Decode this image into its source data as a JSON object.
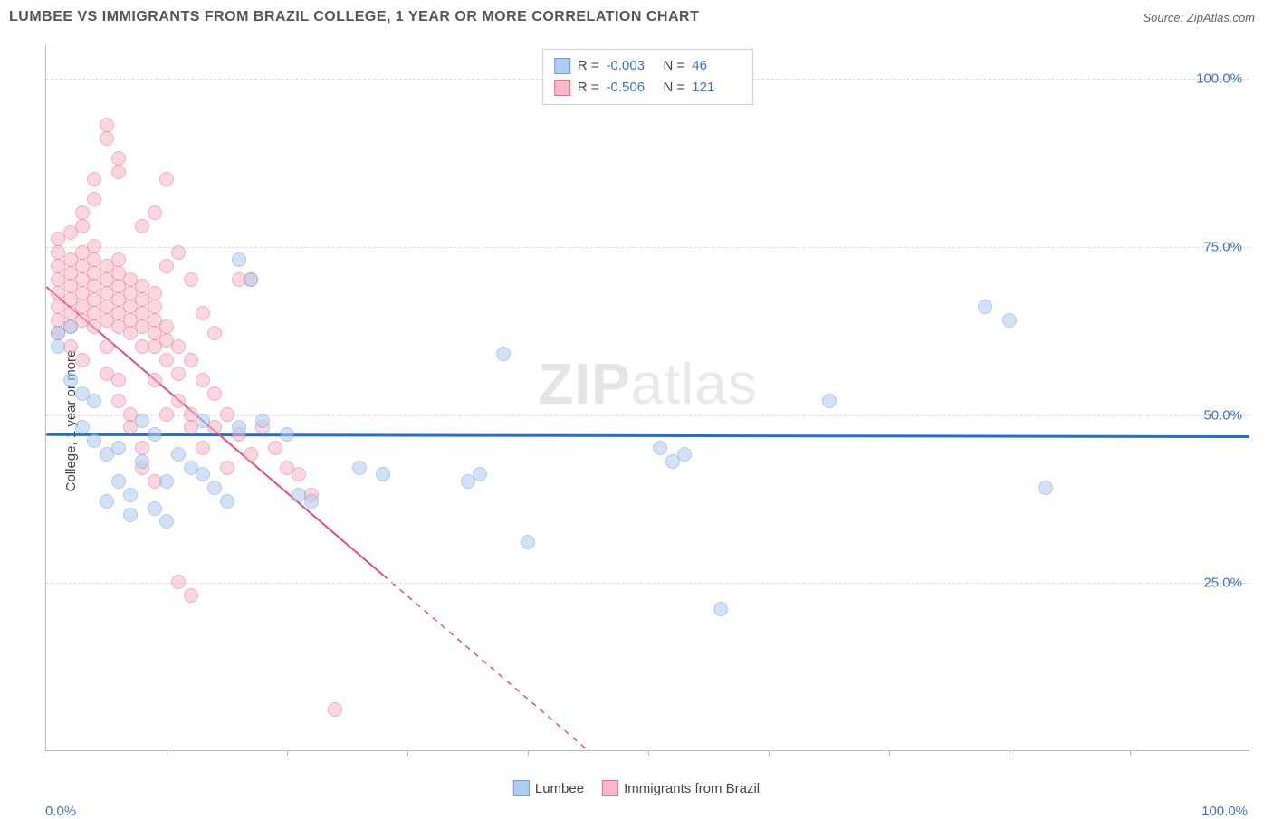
{
  "header": {
    "title": "LUMBEE VS IMMIGRANTS FROM BRAZIL COLLEGE, 1 YEAR OR MORE CORRELATION CHART",
    "source": "Source: ZipAtlas.com"
  },
  "chart": {
    "type": "scatter",
    "ylabel": "College, 1 year or more",
    "watermark_bold": "ZIP",
    "watermark_light": "atlas",
    "background_color": "#ffffff",
    "grid_color": "#dddddd",
    "axis_color": "#bbbbbb",
    "xlim": [
      0,
      100
    ],
    "ylim": [
      0,
      105
    ],
    "xticks_minor": [
      10,
      20,
      30,
      40,
      50,
      60,
      70,
      80,
      90
    ],
    "yticks": [
      {
        "v": 25,
        "label": "25.0%"
      },
      {
        "v": 50,
        "label": "50.0%"
      },
      {
        "v": 75,
        "label": "75.0%"
      },
      {
        "v": 100,
        "label": "100.0%"
      }
    ],
    "x_origin_label": "0.0%",
    "x_end_label": "100.0%",
    "series": [
      {
        "name": "Lumbee",
        "fill": "#aecbf0",
        "stroke": "#6fa0e0",
        "fill_opacity": 0.55,
        "R": "-0.003",
        "N": "46",
        "regression": {
          "x1": 0,
          "y1": 47,
          "x2": 100,
          "y2": 46.7,
          "color": "#1f6fd6",
          "width": 3
        },
        "points": [
          [
            1,
            62
          ],
          [
            1,
            60
          ],
          [
            2,
            55
          ],
          [
            2,
            63
          ],
          [
            3,
            53
          ],
          [
            3,
            48
          ],
          [
            4,
            52
          ],
          [
            4,
            46
          ],
          [
            5,
            44
          ],
          [
            5,
            37
          ],
          [
            6,
            45
          ],
          [
            6,
            40
          ],
          [
            7,
            38
          ],
          [
            7,
            35
          ],
          [
            8,
            49
          ],
          [
            8,
            43
          ],
          [
            9,
            47
          ],
          [
            9,
            36
          ],
          [
            10,
            40
          ],
          [
            10,
            34
          ],
          [
            11,
            44
          ],
          [
            12,
            42
          ],
          [
            13,
            49
          ],
          [
            13,
            41
          ],
          [
            14,
            39
          ],
          [
            15,
            37
          ],
          [
            16,
            48
          ],
          [
            16,
            73
          ],
          [
            17,
            70
          ],
          [
            18,
            49
          ],
          [
            20,
            47
          ],
          [
            21,
            38
          ],
          [
            22,
            37
          ],
          [
            26,
            42
          ],
          [
            28,
            41
          ],
          [
            35,
            40
          ],
          [
            36,
            41
          ],
          [
            40,
            31
          ],
          [
            51,
            45
          ],
          [
            52,
            43
          ],
          [
            53,
            44
          ],
          [
            56,
            21
          ],
          [
            65,
            52
          ],
          [
            78,
            66
          ],
          [
            80,
            64
          ],
          [
            83,
            39
          ],
          [
            38,
            59
          ]
        ]
      },
      {
        "name": "Immigrants from Brazil",
        "fill": "#f6b8c6",
        "stroke": "#ec6d8b",
        "fill_opacity": 0.55,
        "R": "-0.506",
        "N": "121",
        "regression": {
          "x1": 0,
          "y1": 69,
          "x2": 45,
          "y2": 0,
          "color": "#e84c7a",
          "width": 2,
          "dash_after_x": 28
        },
        "points": [
          [
            1,
            70
          ],
          [
            1,
            68
          ],
          [
            1,
            72
          ],
          [
            1,
            74
          ],
          [
            1,
            66
          ],
          [
            1,
            64
          ],
          [
            1,
            76
          ],
          [
            1,
            62
          ],
          [
            2,
            71
          ],
          [
            2,
            69
          ],
          [
            2,
            67
          ],
          [
            2,
            73
          ],
          [
            2,
            65
          ],
          [
            2,
            77
          ],
          [
            2,
            63
          ],
          [
            2,
            60
          ],
          [
            3,
            70
          ],
          [
            3,
            68
          ],
          [
            3,
            72
          ],
          [
            3,
            66
          ],
          [
            3,
            74
          ],
          [
            3,
            64
          ],
          [
            3,
            78
          ],
          [
            3,
            80
          ],
          [
            3,
            58
          ],
          [
            4,
            69
          ],
          [
            4,
            71
          ],
          [
            4,
            67
          ],
          [
            4,
            73
          ],
          [
            4,
            65
          ],
          [
            4,
            75
          ],
          [
            4,
            63
          ],
          [
            4,
            82
          ],
          [
            4,
            85
          ],
          [
            5,
            68
          ],
          [
            5,
            70
          ],
          [
            5,
            66
          ],
          [
            5,
            72
          ],
          [
            5,
            64
          ],
          [
            5,
            60
          ],
          [
            5,
            56
          ],
          [
            5,
            93
          ],
          [
            5,
            91
          ],
          [
            6,
            67
          ],
          [
            6,
            69
          ],
          [
            6,
            71
          ],
          [
            6,
            65
          ],
          [
            6,
            63
          ],
          [
            6,
            73
          ],
          [
            6,
            55
          ],
          [
            6,
            52
          ],
          [
            6,
            86
          ],
          [
            6,
            88
          ],
          [
            7,
            66
          ],
          [
            7,
            68
          ],
          [
            7,
            64
          ],
          [
            7,
            70
          ],
          [
            7,
            62
          ],
          [
            7,
            50
          ],
          [
            7,
            48
          ],
          [
            8,
            65
          ],
          [
            8,
            67
          ],
          [
            8,
            63
          ],
          [
            8,
            60
          ],
          [
            8,
            69
          ],
          [
            8,
            45
          ],
          [
            8,
            42
          ],
          [
            8,
            78
          ],
          [
            9,
            64
          ],
          [
            9,
            62
          ],
          [
            9,
            66
          ],
          [
            9,
            60
          ],
          [
            9,
            55
          ],
          [
            9,
            68
          ],
          [
            9,
            40
          ],
          [
            9,
            80
          ],
          [
            10,
            63
          ],
          [
            10,
            61
          ],
          [
            10,
            58
          ],
          [
            10,
            72
          ],
          [
            10,
            50
          ],
          [
            10,
            85
          ],
          [
            11,
            60
          ],
          [
            11,
            56
          ],
          [
            11,
            52
          ],
          [
            11,
            74
          ],
          [
            11,
            25
          ],
          [
            12,
            58
          ],
          [
            12,
            50
          ],
          [
            12,
            48
          ],
          [
            12,
            70
          ],
          [
            12,
            23
          ],
          [
            13,
            55
          ],
          [
            13,
            45
          ],
          [
            13,
            65
          ],
          [
            14,
            53
          ],
          [
            14,
            48
          ],
          [
            14,
            62
          ],
          [
            15,
            50
          ],
          [
            15,
            42
          ],
          [
            16,
            47
          ],
          [
            16,
            70
          ],
          [
            17,
            44
          ],
          [
            17,
            70
          ],
          [
            18,
            48
          ],
          [
            19,
            45
          ],
          [
            20,
            42
          ],
          [
            21,
            41
          ],
          [
            22,
            38
          ],
          [
            24,
            6
          ]
        ]
      }
    ]
  },
  "legend_bottom": [
    {
      "label": "Lumbee",
      "fill": "#aecbf0",
      "stroke": "#6fa0e0"
    },
    {
      "label": "Immigrants from Brazil",
      "fill": "#f6b8c6",
      "stroke": "#ec6d8b"
    }
  ]
}
